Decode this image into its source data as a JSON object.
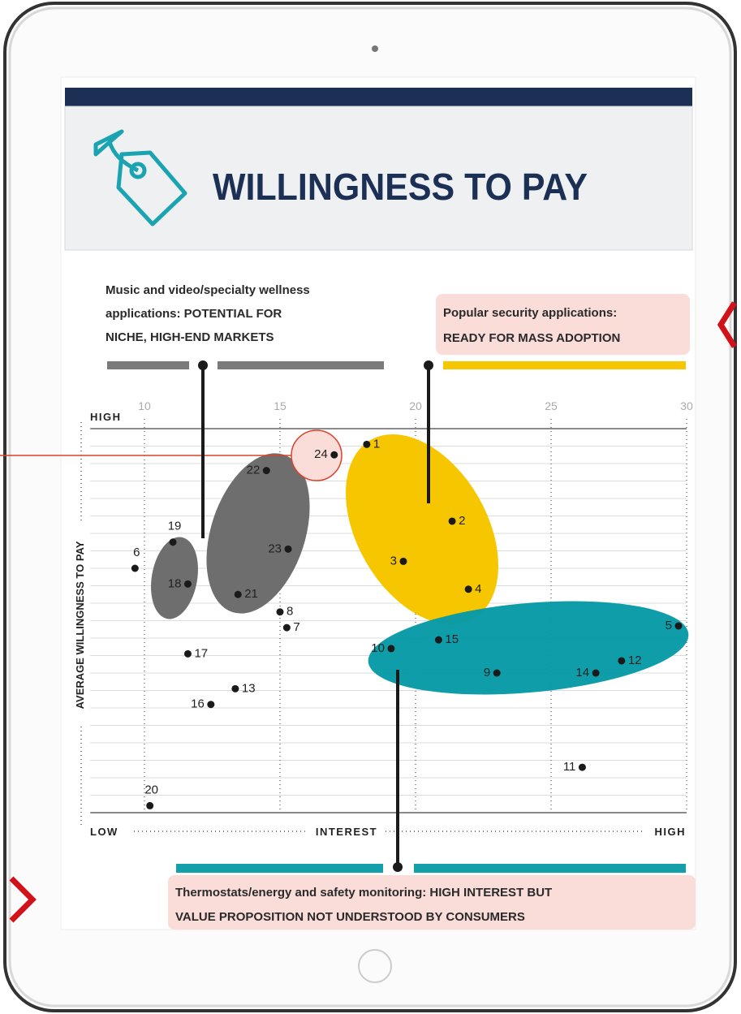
{
  "header": {
    "title": "WILLINGNESS TO PAY"
  },
  "chart_data": {
    "type": "scatter",
    "x_label": "INTEREST",
    "x_low_label": "LOW",
    "x_high_label": "HIGH",
    "y_label": "AVERAGE WILLINGNESS TO PAY",
    "y_high_label": "HIGH",
    "xlim": [
      8,
      30
    ],
    "xticks": [
      10,
      15,
      20,
      25,
      30
    ],
    "ylim": [
      0,
      22
    ],
    "ygrid": [
      0,
      1,
      2,
      3,
      4,
      5,
      6,
      7,
      8,
      9,
      10,
      11,
      12,
      13,
      14,
      15,
      16,
      17,
      18,
      19,
      20,
      21,
      22
    ],
    "color": "#1a1a1a",
    "labels": [
      "1",
      "2",
      "3",
      "4",
      "5",
      "6",
      "7",
      "8",
      "9",
      "10",
      "11",
      "12",
      "13",
      "14",
      "15",
      "16",
      "17",
      "18",
      "19",
      "20",
      "21",
      "22",
      "23",
      "24"
    ],
    "x": [
      18.2,
      21.35,
      19.55,
      21.95,
      29.7,
      9.65,
      15.25,
      15.0,
      23.0,
      19.1,
      26.15,
      27.6,
      13.35,
      26.65,
      20.85,
      12.45,
      11.6,
      11.6,
      11.05,
      10.2,
      13.45,
      14.5,
      15.3,
      17.0
    ],
    "y": [
      21.1,
      16.7,
      14.4,
      12.8,
      10.7,
      14.0,
      10.6,
      11.5,
      8.0,
      9.4,
      2.6,
      8.7,
      7.1,
      8.0,
      9.9,
      6.2,
      9.1,
      13.1,
      15.5,
      0.4,
      12.5,
      19.6,
      15.1,
      20.5
    ],
    "annotations": [
      {
        "lines": [
          "Music and video/specialty wellness",
          "applications: POTENTIAL FOR",
          "NICHE, HIGH-END MARKETS"
        ]
      },
      {
        "lines": [
          "Popular security applications:",
          "READY FOR MASS ADOPTION"
        ]
      },
      {
        "lines": [
          "Thermostats/energy and safety monitoring: HIGH INTEREST BUT",
          "VALUE PROPOSITION NOT UNDERSTOOD BY CONSUMERS"
        ]
      }
    ]
  }
}
